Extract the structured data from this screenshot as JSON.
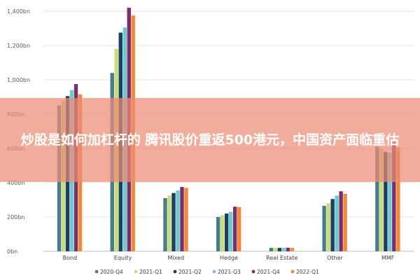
{
  "overlay": {
    "headline": "炒股是如何加杠杆的 腾讯股价重返500港元，中国资产面临重估"
  },
  "chart_data": {
    "type": "bar",
    "title": "",
    "xlabel": "",
    "ylabel": "",
    "ylim": [
      0,
      1400
    ],
    "yticks": [
      0,
      200,
      400,
      600,
      800,
      1000,
      1200,
      1400
    ],
    "ytick_labels": [
      "0bn",
      "200bn",
      "400bn",
      "600bn",
      "800bn",
      "1,000bn",
      "1,200bn",
      "1,400bn"
    ],
    "grid": true,
    "legend_position": "bottom",
    "categories": [
      "Bond",
      "Equity",
      "Mixed",
      "Hedge",
      "Real Estate",
      "Other",
      "MMF"
    ],
    "series": [
      {
        "name": "2020-Q4",
        "color": "#4a7d8c",
        "values": [
          850,
          1040,
          310,
          200,
          20,
          265,
          610
        ]
      },
      {
        "name": "2021-Q1",
        "color": "#c7dc7c",
        "values": [
          880,
          1180,
          325,
          210,
          20,
          280,
          600
        ]
      },
      {
        "name": "2021-Q2",
        "color": "#1d3e5e",
        "values": [
          905,
          1275,
          340,
          220,
          20,
          305,
          580
        ]
      },
      {
        "name": "2021-Q3",
        "color": "#6ccbd0",
        "values": [
          940,
          1305,
          355,
          230,
          20,
          325,
          575
        ]
      },
      {
        "name": "2021-Q4",
        "color": "#7a2f6b",
        "values": [
          975,
          1420,
          375,
          260,
          21,
          350,
          635
        ]
      },
      {
        "name": "2022-Q1",
        "color": "#f08a38",
        "values": [
          915,
          1375,
          370,
          258,
          20,
          335,
          605
        ]
      }
    ]
  }
}
